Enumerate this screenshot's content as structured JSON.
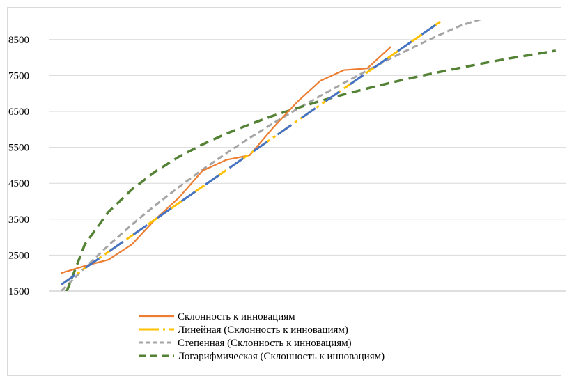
{
  "chart_data": {
    "type": "line",
    "title": "",
    "xlabel": "",
    "ylabel": "",
    "ylim": [
      1500,
      9000
    ],
    "yticks": [
      1500,
      2500,
      3500,
      4500,
      5500,
      6500,
      7500,
      8500
    ],
    "grid": true,
    "legend_position": "bottom",
    "x": [
      1,
      2,
      3,
      4,
      5,
      6,
      7,
      8,
      9,
      10,
      11,
      12,
      13,
      14,
      15,
      16
    ],
    "series": [
      {
        "name": "Склонность к инновациям",
        "style": "solid",
        "color": "#ED7D31",
        "x": [
          1,
          2,
          3,
          4,
          5,
          6,
          7,
          8,
          9,
          10,
          11,
          12,
          13,
          14,
          15,
          16
        ],
        "values": [
          2000,
          2200,
          2370,
          2800,
          3500,
          4100,
          4850,
          5150,
          5280,
          6050,
          6750,
          7350,
          7650,
          7700,
          8300,
          null
        ]
      },
      {
        "name": "Линейная (Склонность к инновациям)",
        "style": "dash-long",
        "color": "#FFC000",
        "x": [
          1,
          17.1
        ],
        "values": [
          1680,
          9000
        ]
      },
      {
        "name": "",
        "style": "dash-overlay",
        "color": "#4472C4",
        "x": [
          1,
          17.1
        ],
        "values": [
          1680,
          9000
        ]
      },
      {
        "name": "Степенная (Склонность к инновациям)",
        "style": "dash-short",
        "color": "#A5A5A5",
        "x": [
          1,
          2,
          3,
          4,
          5,
          6,
          7,
          8,
          9,
          10,
          11,
          12,
          13,
          14,
          15,
          16,
          17,
          18,
          19,
          20
        ],
        "values": [
          1500,
          2150,
          2770,
          3350,
          3890,
          4400,
          4880,
          5330,
          5760,
          6170,
          6560,
          6930,
          7290,
          7640,
          7980,
          8300,
          8610,
          8900,
          9100,
          9200
        ]
      },
      {
        "name": "Логарифмическая (Склонность к инновациям)",
        "style": "dash-medium",
        "color": "#548235",
        "x": [
          1,
          2,
          3,
          4,
          5,
          6,
          7,
          8,
          9,
          10,
          11,
          12,
          13,
          14,
          15,
          16,
          17,
          18,
          19,
          20,
          21,
          22
        ],
        "values": [
          1100,
          2800,
          3700,
          4330,
          4830,
          5240,
          5580,
          5880,
          6140,
          6380,
          6590,
          6790,
          6970,
          7140,
          7300,
          7450,
          7590,
          7720,
          7850,
          7970,
          8080,
          8190
        ]
      }
    ]
  }
}
